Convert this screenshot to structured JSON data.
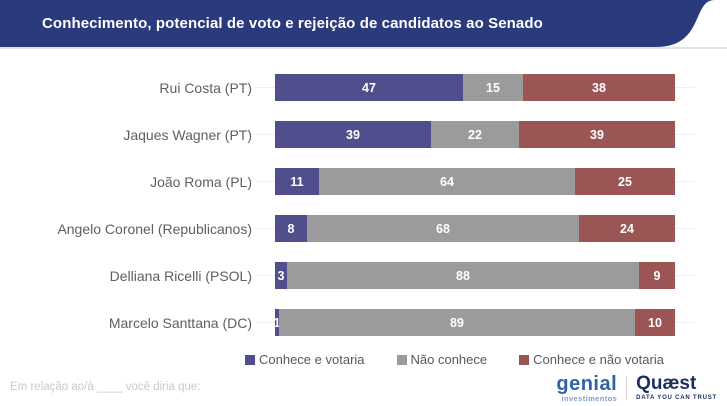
{
  "header": {
    "title": "Conhecimento, potencial de voto e rejeição de candidatos ao Senado",
    "bg_color": "#2b3a7d"
  },
  "chart_data": {
    "type": "bar",
    "orientation": "horizontal",
    "stacked": true,
    "title": "Conhecimento, potencial de voto e rejeição de candidatos ao Senado",
    "xlim": [
      0,
      100
    ],
    "grid": "row baseline ticks only",
    "legend_position": "bottom",
    "value_labels": "inside, white, bold",
    "categories": [
      "Rui Costa (PT)",
      "Jaques Wagner (PT)",
      "João Roma (PL)",
      "Angelo Coronel (Republicanos)",
      "Delliana Ricelli (PSOL)",
      "Marcelo Santtana (DC)"
    ],
    "series": [
      {
        "name": "Conhece e votaria",
        "color": "#504e8d",
        "values": [
          47,
          39,
          11,
          8,
          3,
          1
        ]
      },
      {
        "name": "Não conhece",
        "color": "#9b9b9b",
        "values": [
          15,
          22,
          64,
          68,
          88,
          89
        ]
      },
      {
        "name": "Conhece e não votaria",
        "color": "#9c5555",
        "values": [
          38,
          39,
          25,
          24,
          9,
          10
        ]
      }
    ]
  },
  "legend": [
    {
      "label": "Conhece e votaria",
      "color": "#504e8d"
    },
    {
      "label": "Não conhece",
      "color": "#9b9b9b"
    },
    {
      "label": "Conhece e não votaria",
      "color": "#9c5555"
    }
  ],
  "footer": {
    "note": "Em relação ao/à ____ você diria que:",
    "logos": {
      "genial": {
        "name": "genial",
        "subtext": "investimentos"
      },
      "quaest": {
        "name": "Quæst",
        "subtext": "DATA YOU CAN TRUST"
      }
    }
  }
}
